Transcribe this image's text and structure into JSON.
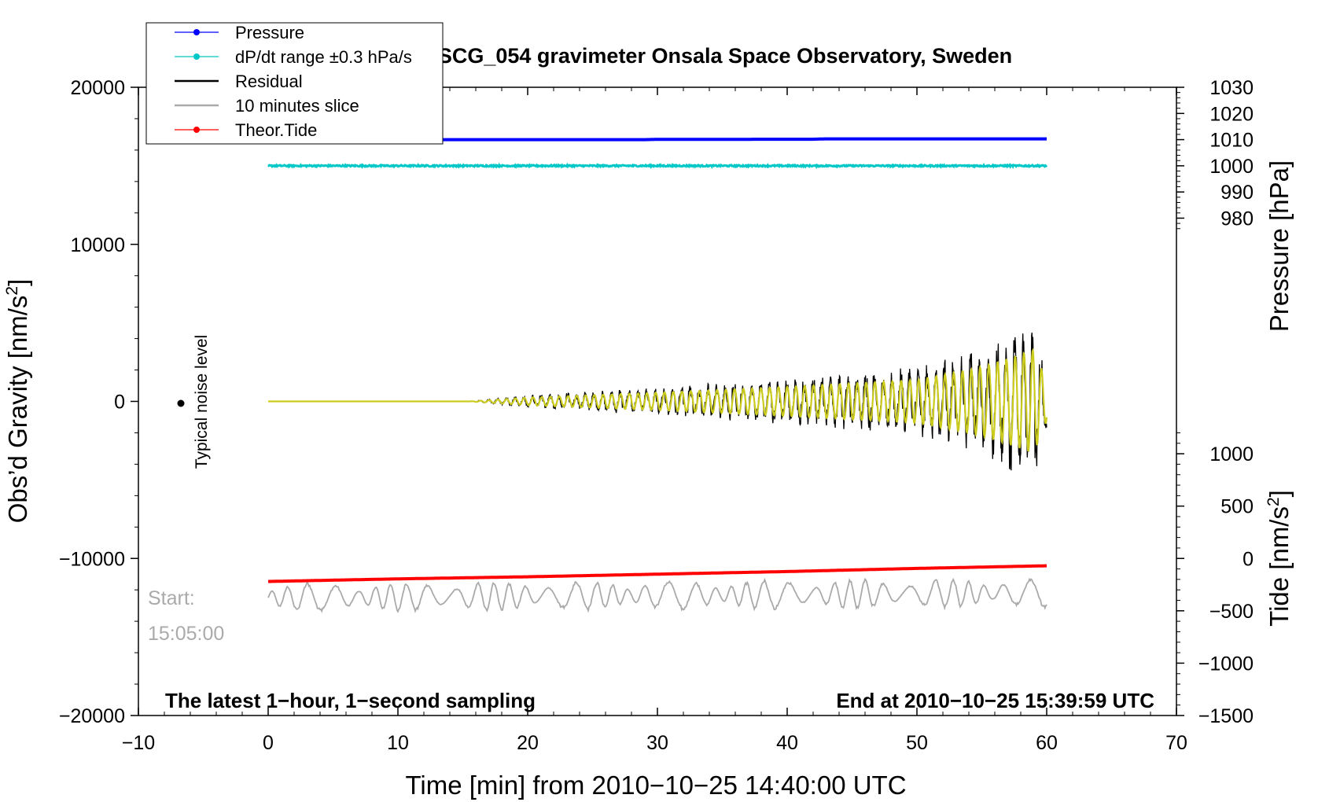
{
  "chart_data": {
    "type": "line",
    "title": "SCG_054 gravimeter Onsala Space Observatory, Sweden",
    "xlabel": "Time [min] from 2010−10−25 14:40:00 UTC",
    "ylabel_left": "Obs’d Gravity [nm/s",
    "ylabel_left_sup": "2",
    "ylabel_left_close": "]",
    "ylabel_right_top": "Pressure [hPa]",
    "ylabel_right_bottom": "Tide [nm/s",
    "ylabel_right_bottom_sup": "2",
    "ylabel_right_bottom_close": "]",
    "xlim": [
      -10,
      70
    ],
    "ylim": [
      -20000,
      20000
    ],
    "x_ticks": [
      -10,
      0,
      10,
      20,
      30,
      40,
      50,
      60,
      70
    ],
    "x_tick_labels": [
      "−10",
      "0",
      "10",
      "20",
      "30",
      "40",
      "50",
      "60",
      "70"
    ],
    "y_ticks": [
      20000,
      10000,
      0,
      -10000,
      -20000
    ],
    "y_tick_labels": [
      "20000",
      "10000",
      "0",
      "−10000",
      "−20000"
    ],
    "pressure_axis": {
      "range": [
        970,
        1030
      ],
      "ticks": [
        1030,
        1020,
        1010,
        1000,
        990,
        980
      ],
      "tick_labels": [
        "1030",
        "1020",
        "1010",
        "1000",
        "990",
        "980"
      ]
    },
    "tide_axis": {
      "range": [
        -1500,
        1500
      ],
      "ticks": [
        1000,
        500,
        0,
        -500,
        -1000,
        -1500
      ],
      "tick_labels": [
        "1000",
        "500",
        "0",
        "−500",
        "−1000",
        "−1500"
      ]
    },
    "series": [
      {
        "name": "Pressure",
        "color": "#0000ff",
        "x": [
          0,
          29,
          30,
          42,
          43,
          60
        ],
        "values": [
          1010.0,
          1010.0,
          1010.1,
          1010.15,
          1010.3,
          1010.3
        ]
      },
      {
        "name": "dP/dt range ±0.3 hPa/s",
        "color": "#00c8c8",
        "x": [
          0,
          60
        ],
        "values": [
          1000,
          1000
        ]
      },
      {
        "name": "Residual",
        "color": "#000000",
        "x": [
          0,
          15.5,
          20,
          30,
          40,
          50,
          55,
          59,
          60
        ],
        "envelope": [
          0,
          0,
          400,
          900,
          1500,
          2200,
          3500,
          5300,
          2000
        ]
      },
      {
        "name": "10 minutes slice",
        "color": "#aaaaaa",
        "x": [
          0,
          60
        ],
        "values": [
          -12500,
          -12200
        ]
      },
      {
        "name": "Theor.Tide",
        "color": "#ff0000",
        "x": [
          0,
          10,
          20,
          30,
          40,
          50,
          60
        ],
        "values": [
          -220,
          -195,
          -175,
          -150,
          -125,
          -95,
          -70
        ]
      }
    ],
    "legend": {
      "location": "top-left",
      "entries": [
        {
          "label": "Pressure",
          "color": "#0000ff",
          "marker": "dot"
        },
        {
          "label": "dP/dt range ±0.3 hPa/s",
          "color": "#00c8c8",
          "marker": "dot"
        },
        {
          "label": "Residual",
          "color": "#000000",
          "marker": "line"
        },
        {
          "label": "10 minutes slice",
          "color": "#aaaaaa",
          "marker": "line"
        },
        {
          "label": "Theor.Tide",
          "color": "#ff0000",
          "marker": "dot"
        }
      ]
    },
    "annotations": {
      "noise": "Typical noise level",
      "start_label": "Start:",
      "start_time": "15:05:00",
      "bottom_left": "The latest 1−hour, 1−second sampling",
      "bottom_right": "End at 2010−10−25 15:39:59 UTC"
    }
  }
}
